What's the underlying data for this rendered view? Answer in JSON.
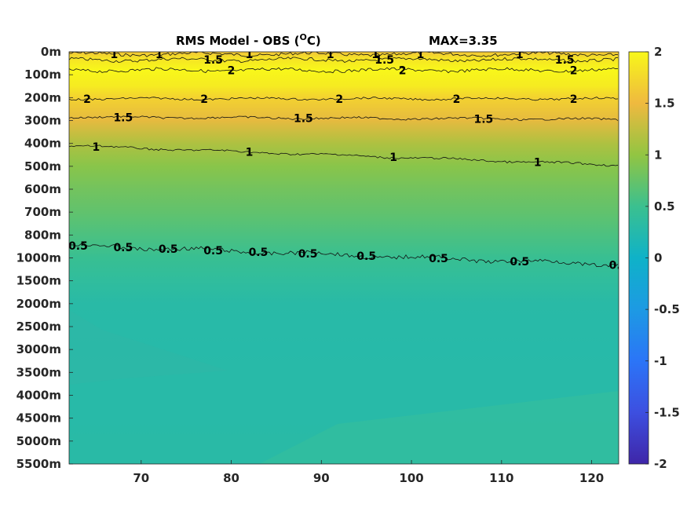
{
  "chart_data": {
    "type": "heatmap",
    "title": "RMS Model - OBS (",
    "title_superscript": "O",
    "title_unit_suffix": "C)",
    "max_label": "MAX=3.35",
    "xlim": [
      62,
      123
    ],
    "x_ticks": [
      70,
      80,
      90,
      100,
      110,
      120
    ],
    "y_tick_labels": [
      "0m",
      "100m",
      "200m",
      "300m",
      "400m",
      "500m",
      "600m",
      "700m",
      "800m",
      "1000m",
      "1500m",
      "2000m",
      "2500m",
      "3000m",
      "3500m",
      "4000m",
      "4500m",
      "5000m",
      "5500m"
    ],
    "colorbar": {
      "min": -2,
      "max": 2,
      "ticks": [
        2,
        1.5,
        1,
        0.5,
        0,
        -0.5,
        -1,
        -1.5,
        -2
      ],
      "tick_labels": [
        "2",
        "1.5",
        "1",
        "0.5",
        "0",
        "-0.5",
        "-1",
        "-1.5",
        "-2"
      ],
      "colormap": "parula"
    },
    "depth_profile": [
      {
        "level": 0,
        "value": 1.6
      },
      {
        "level": 0.3,
        "value": 1.85
      },
      {
        "level": 0.8,
        "value": 2.1
      },
      {
        "level": 1.5,
        "value": 1.9
      },
      {
        "level": 2,
        "value": 1.7
      },
      {
        "level": 3,
        "value": 1.45
      },
      {
        "level": 4,
        "value": 1.15
      },
      {
        "level": 5,
        "value": 0.95
      },
      {
        "level": 6,
        "value": 0.82
      },
      {
        "level": 7,
        "value": 0.72
      },
      {
        "level": 8,
        "value": 0.6
      },
      {
        "level": 9,
        "value": 0.47
      },
      {
        "level": 10,
        "value": 0.38
      },
      {
        "level": 11,
        "value": 0.3
      },
      {
        "level": 12,
        "value": 0.28
      },
      {
        "level": 13,
        "value": 0.27
      },
      {
        "level": 14,
        "value": 0.28
      },
      {
        "level": 15,
        "value": 0.28
      },
      {
        "level": 16,
        "value": 0.28
      },
      {
        "level": 17,
        "value": 0.3
      },
      {
        "level": 18,
        "value": 0.3
      }
    ],
    "contours": [
      {
        "value": 1,
        "label": "1",
        "level_left": 0.1,
        "level_right": 0.1,
        "label_x": [
          67,
          72,
          82,
          91,
          96,
          101,
          112
        ]
      },
      {
        "value": 1.5,
        "label": "1.5",
        "level_left": 0.35,
        "level_right": 0.35,
        "label_x": [
          78,
          97,
          117
        ]
      },
      {
        "value": 2,
        "label": "2",
        "level_left": 0.8,
        "level_right": 0.8,
        "label_x": [
          80,
          99,
          118
        ]
      },
      {
        "value": 2,
        "label": "2",
        "level_left": 2.05,
        "level_right": 2.05,
        "label_x": [
          64,
          77,
          92,
          105,
          118
        ]
      },
      {
        "value": 1.5,
        "label": "1.5",
        "level_left": 2.85,
        "level_right": 2.95,
        "label_x": [
          68,
          88,
          108
        ]
      },
      {
        "value": 1,
        "label": "1",
        "level_left": 4.1,
        "level_right": 4.95,
        "label_x": [
          65,
          82,
          98,
          114
        ]
      },
      {
        "value": 0.5,
        "label": "0.5",
        "level_left": 8.45,
        "level_right": 9.3,
        "label_x": [
          63,
          68,
          73,
          78,
          83,
          88.5,
          95,
          103,
          112,
          123
        ]
      }
    ]
  }
}
